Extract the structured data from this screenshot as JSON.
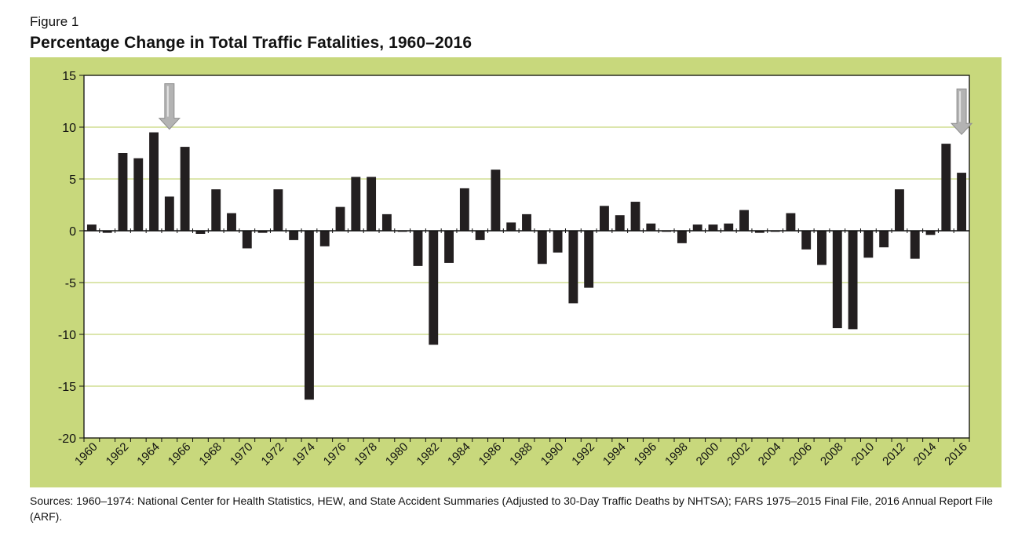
{
  "figure_label": "Figure 1",
  "title": "Percentage Change in Total Traffic Fatalities, 1960–2016",
  "sources": "Sources: 1960–1974: National Center for Health Statistics, HEW, and State Accident Summaries (Adjusted to 30-Day Traffic Deaths by NHTSA); FARS 1975–2015 Final File, 2016 Annual Report File (ARF).",
  "colors": {
    "panel_background": "#c8d87c",
    "plot_background": "#ffffff",
    "bar": "#231f20",
    "gridline": "#c8d87c",
    "axis": "#111111",
    "arrow": "#b3b3b3"
  },
  "chart_data": {
    "type": "bar",
    "title": "Percentage Change in Total Traffic Fatalities, 1960–2016",
    "xlabel": "",
    "ylabel": "",
    "ylim": [
      -20,
      15
    ],
    "yticks": [
      15,
      10,
      5,
      0,
      -5,
      -10,
      -15,
      -20
    ],
    "grid": true,
    "legend": "none",
    "categories": [
      "1960",
      "1961",
      "1962",
      "1963",
      "1964",
      "1965",
      "1966",
      "1967",
      "1968",
      "1969",
      "1970",
      "1971",
      "1972",
      "1973",
      "1974",
      "1975",
      "1976",
      "1977",
      "1978",
      "1979",
      "1980",
      "1981",
      "1982",
      "1983",
      "1984",
      "1985",
      "1986",
      "1987",
      "1988",
      "1989",
      "1990",
      "1991",
      "1992",
      "1993",
      "1994",
      "1995",
      "1996",
      "1997",
      "1998",
      "1999",
      "2000",
      "2001",
      "2002",
      "2003",
      "2004",
      "2005",
      "2006",
      "2007",
      "2008",
      "2009",
      "2010",
      "2011",
      "2012",
      "2013",
      "2014",
      "2015",
      "2016"
    ],
    "tick_labels": [
      "1960",
      "1962",
      "1964",
      "1966",
      "1968",
      "1970",
      "1972",
      "1974",
      "1976",
      "1978",
      "1980",
      "1982",
      "1984",
      "1986",
      "1988",
      "1990",
      "1992",
      "1994",
      "1996",
      "1998",
      "2000",
      "2002",
      "2004",
      "2006",
      "2008",
      "2010",
      "2012",
      "2014",
      "2016"
    ],
    "values": [
      0.6,
      -0.2,
      7.5,
      7.0,
      9.5,
      3.3,
      8.1,
      -0.3,
      4.0,
      1.7,
      -1.7,
      -0.2,
      4.0,
      -0.9,
      -16.3,
      -1.5,
      2.3,
      5.2,
      5.2,
      1.6,
      -0.1,
      -3.4,
      -11.0,
      -3.1,
      4.1,
      -0.9,
      5.9,
      0.8,
      1.6,
      -3.2,
      -2.1,
      -7.0,
      -5.5,
      2.4,
      1.5,
      2.8,
      0.7,
      -0.1,
      -1.2,
      0.6,
      0.6,
      0.7,
      2.0,
      -0.2,
      -0.1,
      1.7,
      -1.8,
      -3.3,
      -9.4,
      -9.5,
      -2.6,
      -1.6,
      4.0,
      -2.7,
      -0.4,
      8.4,
      5.6
    ],
    "annotations": [
      {
        "type": "arrow",
        "at": "1965",
        "direction": "down"
      },
      {
        "type": "arrow",
        "at": "2016",
        "direction": "down"
      }
    ]
  }
}
